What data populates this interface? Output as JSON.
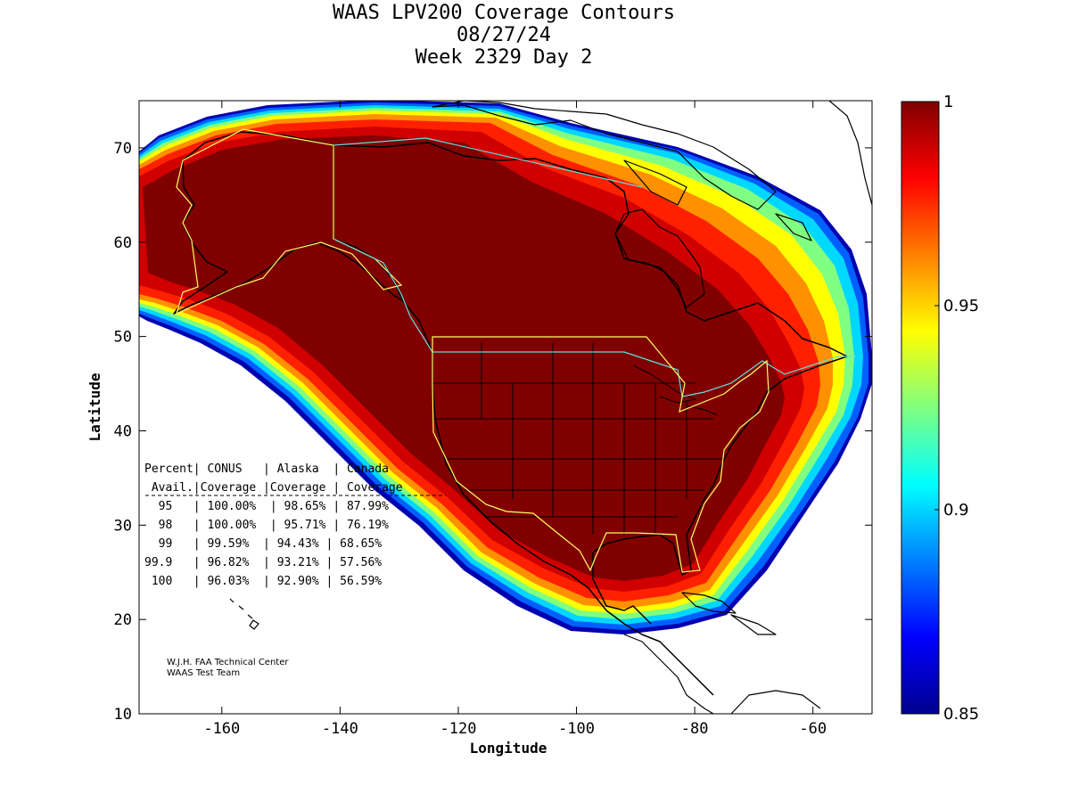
{
  "title": {
    "line1": "WAAS LPV200 Coverage Contours",
    "line2": "08/27/24",
    "line3": "Week 2329 Day 2"
  },
  "axes": {
    "xlabel": "Longitude",
    "ylabel": "Latitude",
    "xlim": [
      -174,
      -50
    ],
    "ylim": [
      10,
      75
    ],
    "xticks": [
      "-160",
      "-140",
      "-120",
      "-100",
      "-80",
      "-60"
    ],
    "yticks": [
      "10",
      "20",
      "30",
      "40",
      "50",
      "60",
      "70"
    ]
  },
  "colorbar": {
    "range": [
      0.85,
      1
    ],
    "ticks": [
      "1",
      "0.95",
      "0.9",
      "0.85"
    ],
    "colormap": "jet"
  },
  "table": {
    "header1": "Percent| CONUS   | Alaska  | Canada",
    "header2": " Avail.|Coverage |Coverage | Coverage",
    "rows": [
      "  95   | 100.00%  | 98.65% | 87.99%",
      "  98   | 100.00%  | 95.71% | 76.19%",
      "  99   | 99.59%  | 94.43% | 68.65%",
      "99.9   | 96.82%  | 93.21% | 57.56%",
      " 100   | 96.03%  | 92.90% | 56.59%"
    ]
  },
  "chart_data": {
    "type": "heatmap",
    "title": "WAAS LPV200 Coverage Contours",
    "xlabel": "Longitude",
    "ylabel": "Latitude",
    "xlim": [
      -174,
      -50
    ],
    "ylim": [
      10,
      75
    ],
    "zlim": [
      0.85,
      1
    ],
    "availability_table": {
      "columns": [
        "Percent Avail.",
        "CONUS Coverage",
        "Alaska Coverage",
        "Canada Coverage"
      ],
      "rows": [
        [
          "95",
          "100.00%",
          "98.65%",
          "87.99%"
        ],
        [
          "98",
          "100.00%",
          "95.71%",
          "76.19%"
        ],
        [
          "99",
          "99.59%",
          "94.43%",
          "68.65%"
        ],
        [
          "99.9",
          "96.82%",
          "93.21%",
          "57.56%"
        ],
        [
          "100",
          "96.03%",
          "92.90%",
          "56.59%"
        ]
      ]
    }
  },
  "credit": {
    "line1": "W.J.H. FAA Technical Center",
    "line2": "WAAS Test Team"
  },
  "colors": {
    "coverage_high": "#800000",
    "coverage_low": "#00008f",
    "coastline": "#000000",
    "service_boundary_yellow": "#ffff66",
    "service_boundary_cyan": "#66dddd"
  }
}
